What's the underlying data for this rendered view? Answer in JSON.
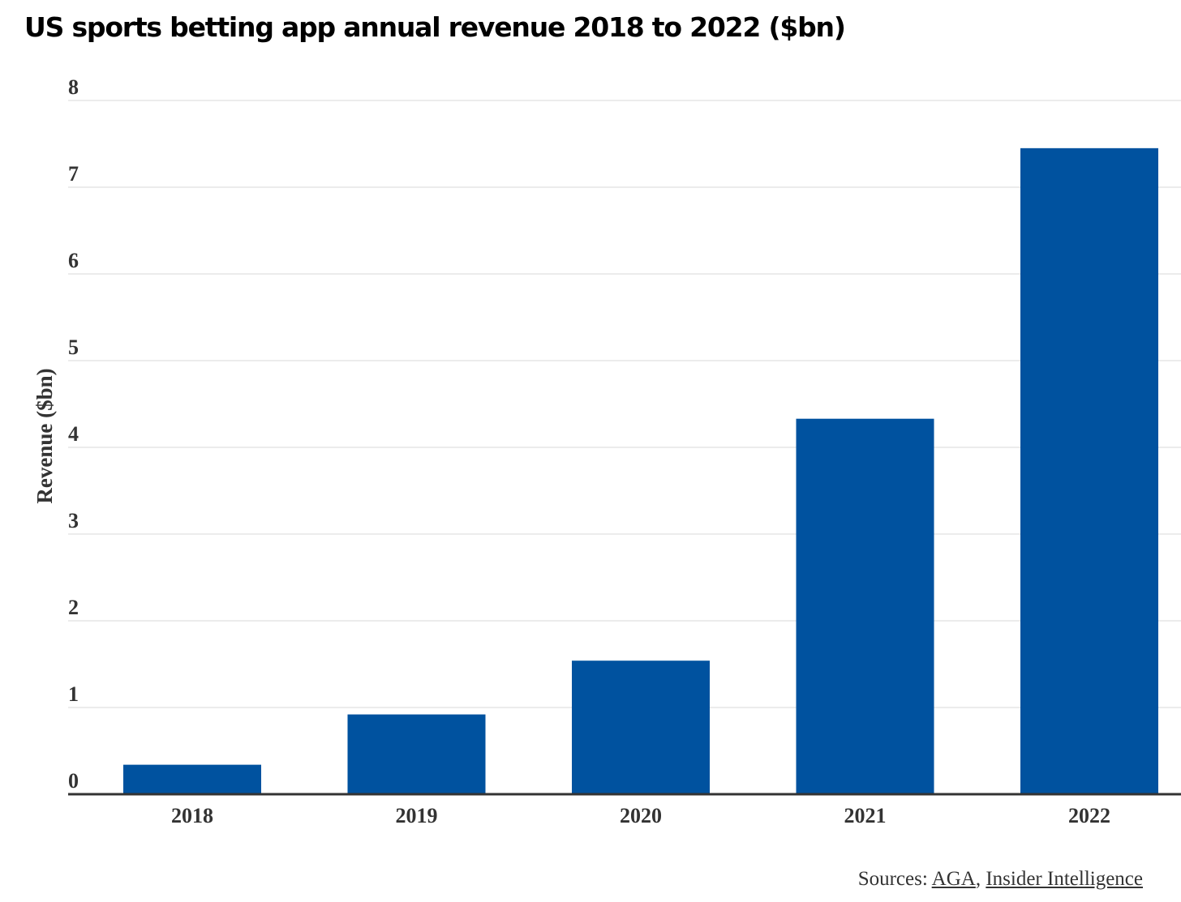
{
  "chart_data": {
    "type": "bar",
    "title": "US sports betting app annual revenue 2018 to 2022 ($bn)",
    "xlabel": "",
    "ylabel": "Revenue ($bn)",
    "categories": [
      "2018",
      "2019",
      "2020",
      "2021",
      "2022"
    ],
    "values": [
      0.34,
      0.92,
      1.54,
      4.33,
      7.45
    ],
    "ylim": [
      0,
      8
    ],
    "yticks": [
      0,
      1,
      2,
      3,
      4,
      5,
      6,
      7,
      8
    ],
    "grid": true,
    "bar_color": "#00529f"
  },
  "sources": {
    "prefix": "Sources: ",
    "link1": "AGA",
    "separator": ", ",
    "link2": "Insider Intelligence"
  }
}
